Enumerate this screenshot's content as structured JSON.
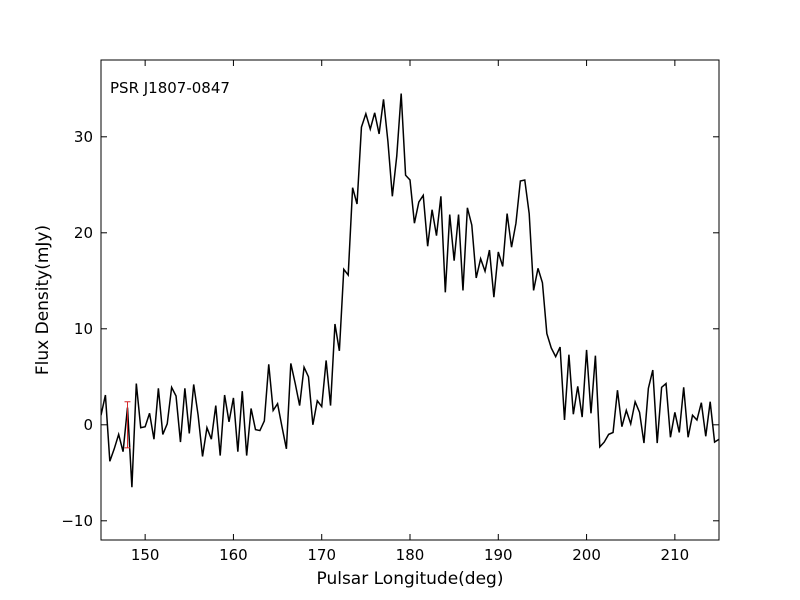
{
  "chart_data": {
    "type": "line",
    "annotation": "PSR J1807-0847",
    "xlabel": "Pulsar Longitude(deg)",
    "ylabel": "Flux Density(mJy)",
    "color": "#000000",
    "x": [
      145,
      145.5,
      146,
      146.5,
      147,
      147.5,
      148,
      148.5,
      149,
      149.5,
      150,
      150.5,
      151,
      151.5,
      152,
      152.5,
      153,
      153.5,
      154,
      154.5,
      155,
      155.5,
      156,
      156.5,
      157,
      157.5,
      158,
      158.5,
      159,
      159.5,
      160,
      160.5,
      161,
      161.5,
      162,
      162.5,
      163,
      163.5,
      164,
      164.5,
      165,
      165.5,
      166,
      166.5,
      167,
      167.5,
      168,
      168.5,
      169,
      169.5,
      170,
      170.5,
      171,
      171.5,
      172,
      172.5,
      173,
      173.5,
      174,
      174.5,
      175,
      175.5,
      176,
      176.5,
      177,
      177.5,
      178,
      178.5,
      179,
      179.5,
      180,
      180.5,
      181,
      181.5,
      182,
      182.5,
      183,
      183.5,
      184,
      184.5,
      185,
      185.5,
      186,
      186.5,
      187,
      187.5,
      188,
      188.5,
      189,
      189.5,
      190,
      190.5,
      191,
      191.5,
      192,
      192.5,
      193,
      193.5,
      194,
      194.5,
      195,
      195.5,
      196,
      196.5,
      197,
      197.5,
      198,
      198.5,
      199,
      199.5,
      200,
      200.5,
      201,
      201.5,
      202,
      202.5,
      203,
      203.5,
      204,
      204.5,
      205,
      205.5,
      206,
      206.5,
      207,
      207.5,
      208,
      208.5,
      209,
      209.5,
      210,
      210.5,
      211,
      211.5,
      212,
      212.5,
      213,
      213.5,
      214,
      214.5,
      215
    ],
    "values": [
      1.0,
      3.1,
      -3.8,
      -2.5,
      -1.0,
      -2.8,
      1.8,
      -6.5,
      4.3,
      -0.3,
      -0.2,
      1.2,
      -1.5,
      3.8,
      -1.0,
      0.1,
      3.9,
      3.0,
      -1.8,
      3.8,
      -0.9,
      4.2,
      1.0,
      -3.3,
      -0.3,
      -1.5,
      2.0,
      -3.2,
      3.1,
      0.3,
      2.8,
      -2.8,
      3.5,
      -3.2,
      1.7,
      -0.5,
      -0.6,
      0.4,
      6.3,
      1.5,
      2.2,
      -0.2,
      -2.5,
      6.4,
      4.3,
      2.0,
      6.0,
      5.0,
      0.0,
      2.5,
      1.9,
      6.7,
      2.0,
      10.5,
      7.7,
      16.2,
      15.6,
      24.7,
      23.0,
      31.0,
      32.4,
      30.8,
      32.5,
      30.3,
      33.9,
      29.5,
      23.8,
      28.0,
      34.5,
      26.0,
      25.5,
      21.0,
      23.2,
      23.9,
      18.6,
      22.4,
      19.7,
      23.8,
      13.8,
      21.9,
      17.1,
      21.9,
      14.0,
      22.6,
      20.8,
      15.3,
      17.3,
      16.0,
      18.2,
      13.3,
      18.0,
      16.5,
      22.0,
      18.5,
      21.0,
      25.4,
      25.5,
      22.0,
      14.0,
      16.3,
      14.8,
      9.5,
      8.0,
      7.1,
      8.1,
      0.5,
      7.3,
      1.1,
      4.0,
      0.8,
      7.8,
      1.2,
      7.2,
      -2.3,
      -1.8,
      -1.0,
      -0.8,
      3.6,
      -0.2,
      1.5,
      0.1,
      2.4,
      1.3,
      -1.9,
      3.8,
      5.7,
      -1.9,
      3.9,
      4.3,
      -1.3,
      1.3,
      -0.8,
      3.9,
      -1.3,
      1.0,
      0.5,
      2.3,
      -1.2,
      2.4,
      -1.8,
      -1.5
    ],
    "error_bar": {
      "x": 148,
      "value": 0,
      "error": 2.4,
      "color": "#d62728"
    },
    "xlim": [
      145,
      215
    ],
    "xticks": [
      150,
      160,
      170,
      180,
      190,
      200,
      210
    ],
    "ylim": [
      -12,
      38
    ],
    "yticks": [
      {
        "value": -10,
        "label": "−10"
      },
      0,
      10,
      20,
      30
    ]
  }
}
